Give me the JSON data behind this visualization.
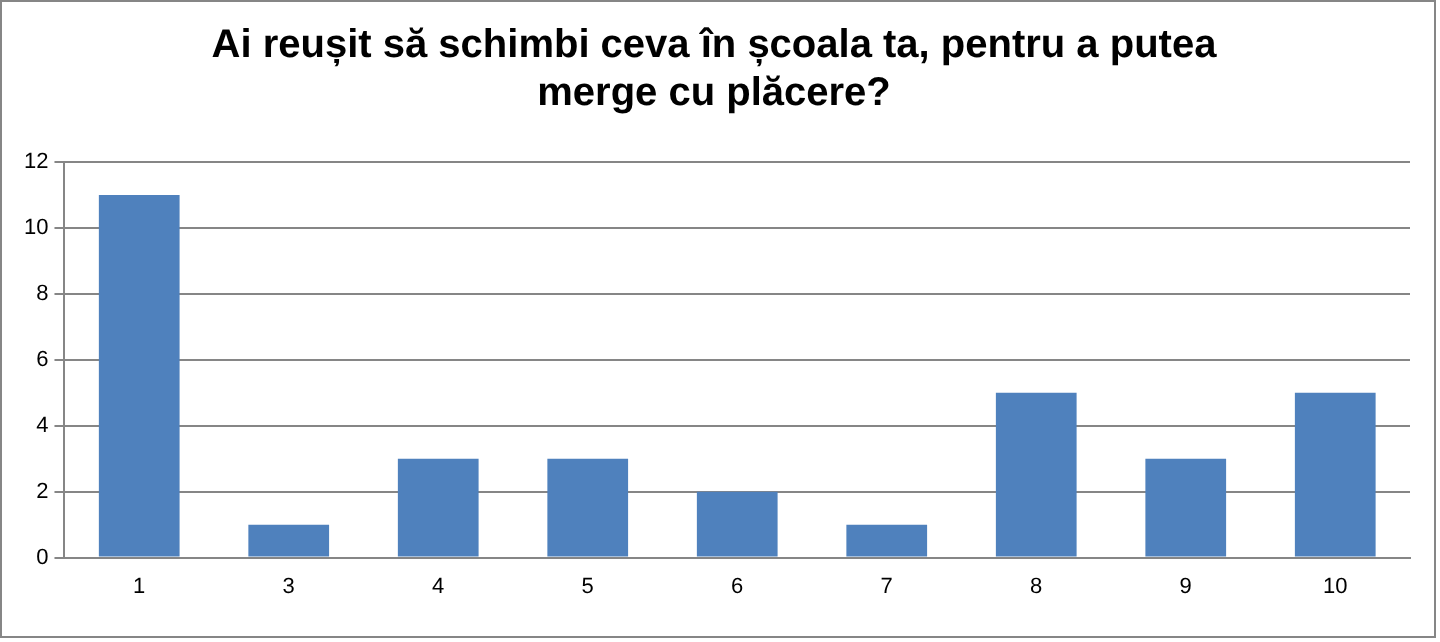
{
  "chart_data": {
    "type": "bar",
    "title": "Ai reușit să schimbi ceva în școala ta, pentru a putea merge cu plăcere?",
    "categories": [
      "1",
      "3",
      "4",
      "5",
      "6",
      "7",
      "8",
      "9",
      "10"
    ],
    "values": [
      11,
      1,
      3,
      3,
      2,
      1,
      5,
      3,
      5
    ],
    "color": "#4f81bd",
    "ylim": [
      0,
      12
    ],
    "yticks": [
      0,
      2,
      4,
      6,
      8,
      10,
      12
    ],
    "grid": "y",
    "legend": false
  }
}
